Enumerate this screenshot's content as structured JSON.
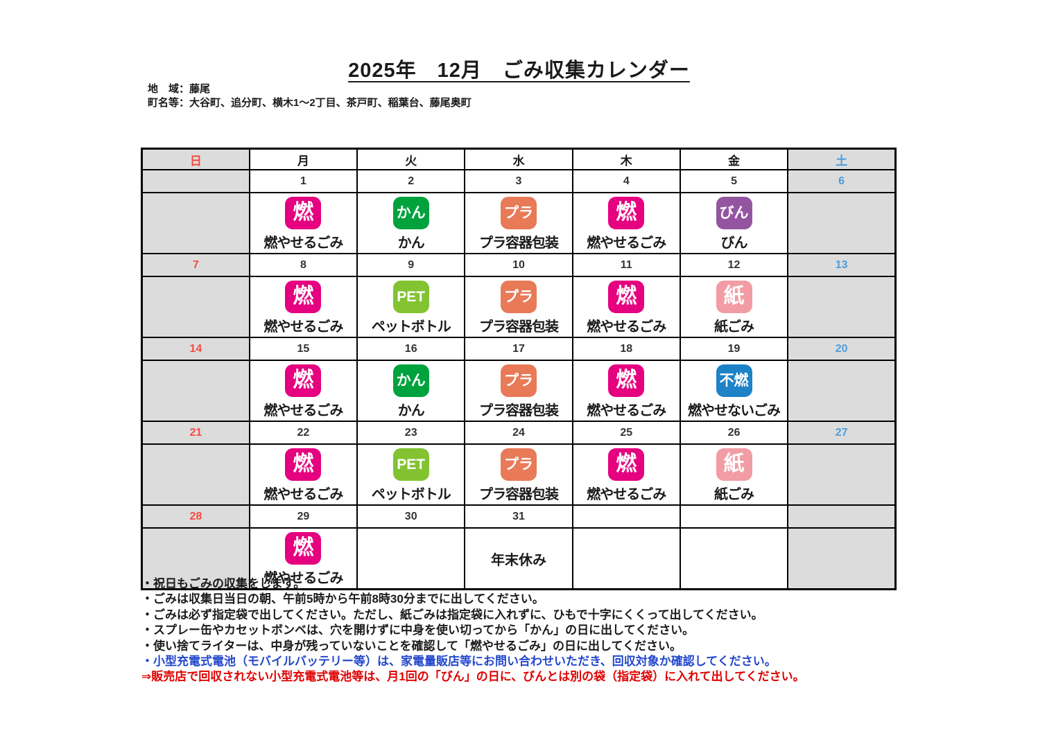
{
  "title": "2025年　12月　ごみ収集カレンダー",
  "area": {
    "region": "地　域：藤尾",
    "towns": "町名等：大谷町、追分町、横木1～2丁目、茶戸町、稲葉台、藤尾奥町"
  },
  "colors": {
    "sunday_text": "#f44b42",
    "saturday_text": "#4d9ddb",
    "weekend_bg": "#dcdcdc",
    "note_blue": "#2247cc",
    "note_red": "#e00000"
  },
  "badge_colors": {
    "燃": "#e5017f",
    "かん": "#00a23e",
    "プラ": "#e87a58",
    "びん": "#9455a0",
    "PET": "#83c332",
    "紙": "#f29ca5",
    "不燃": "#1d82c6"
  },
  "calendar": {
    "day_headers": [
      "日",
      "月",
      "火",
      "水",
      "木",
      "金",
      "土"
    ],
    "weeks": [
      {
        "dates": [
          "",
          "1",
          "2",
          "3",
          "4",
          "5",
          "6"
        ],
        "entries": [
          null,
          {
            "badge": "燃",
            "label": "燃やせるごみ"
          },
          {
            "badge": "かん",
            "label": "かん"
          },
          {
            "badge": "プラ",
            "label": "プラ容器包装"
          },
          {
            "badge": "燃",
            "label": "燃やせるごみ"
          },
          {
            "badge": "びん",
            "label": "びん"
          },
          null
        ]
      },
      {
        "dates": [
          "7",
          "8",
          "9",
          "10",
          "11",
          "12",
          "13"
        ],
        "entries": [
          null,
          {
            "badge": "燃",
            "label": "燃やせるごみ"
          },
          {
            "badge": "PET",
            "label": "ペットボトル"
          },
          {
            "badge": "プラ",
            "label": "プラ容器包装"
          },
          {
            "badge": "燃",
            "label": "燃やせるごみ"
          },
          {
            "badge": "紙",
            "label": "紙ごみ"
          },
          null
        ]
      },
      {
        "dates": [
          "14",
          "15",
          "16",
          "17",
          "18",
          "19",
          "20"
        ],
        "entries": [
          null,
          {
            "badge": "燃",
            "label": "燃やせるごみ"
          },
          {
            "badge": "かん",
            "label": "かん"
          },
          {
            "badge": "プラ",
            "label": "プラ容器包装"
          },
          {
            "badge": "燃",
            "label": "燃やせるごみ"
          },
          {
            "badge": "不燃",
            "label": "燃やせないごみ"
          },
          null
        ]
      },
      {
        "dates": [
          "21",
          "22",
          "23",
          "24",
          "25",
          "26",
          "27"
        ],
        "entries": [
          null,
          {
            "badge": "燃",
            "label": "燃やせるごみ"
          },
          {
            "badge": "PET",
            "label": "ペットボトル"
          },
          {
            "badge": "プラ",
            "label": "プラ容器包装"
          },
          {
            "badge": "燃",
            "label": "燃やせるごみ"
          },
          {
            "badge": "紙",
            "label": "紙ごみ"
          },
          null
        ]
      },
      {
        "dates": [
          "28",
          "29",
          "30",
          "31",
          "",
          "",
          ""
        ],
        "entries": [
          null,
          {
            "badge": "燃",
            "label": "燃やせるごみ"
          },
          null,
          {
            "text": "年末休み"
          },
          null,
          null,
          null
        ]
      }
    ]
  },
  "notes": [
    {
      "text": "・祝日もごみの収集をします。"
    },
    {
      "text": "・ごみは収集日当日の朝、午前5時から午前8時30分までに出してください。"
    },
    {
      "text": "・ごみは必ず指定袋で出してください。ただし、紙ごみは指定袋に入れずに、ひもで十字にくくって出してください。"
    },
    {
      "text": "・スプレー缶やカセットボンベは、穴を開けずに中身を使い切ってから「かん」の日に出してください。"
    },
    {
      "text": "・使い捨てライターは、中身が残っていないことを確認して「燃やせるごみ」の日に出してください。"
    },
    {
      "text": "・小型充電式電池（モバイルバッテリー等）は、家電量販店等にお問い合わせいただき、回収対象か確認してください。"
    },
    {
      "text": "⇒販売店で回収されない小型充電式電池等は、月1回の「びん」の日に、びんとは別の袋（指定袋）に入れて出してください。"
    }
  ]
}
